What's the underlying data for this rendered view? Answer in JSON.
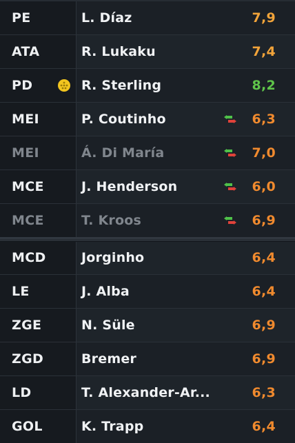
{
  "players": [
    {
      "position": "PE",
      "name": "L. Díaz",
      "rating": "7,9",
      "rating_color": "#f2a43a",
      "dim": false,
      "badge": null,
      "sub": false
    },
    {
      "position": "ATA",
      "name": "R. Lukaku",
      "rating": "7,4",
      "rating_color": "#f2a43a",
      "dim": false,
      "badge": null,
      "sub": false
    },
    {
      "position": "PD",
      "name": "R. Sterling",
      "rating": "8,2",
      "rating_color": "#5fc44a",
      "dim": false,
      "badge": "ball-icon",
      "sub": false
    },
    {
      "position": "MEI",
      "name": "P. Coutinho",
      "rating": "6,3",
      "rating_color": "#f08a2e",
      "dim": false,
      "badge": null,
      "sub": true
    },
    {
      "position": "MEI",
      "name": "Á. Di María",
      "rating": "7,0",
      "rating_color": "#f08a2e",
      "dim": true,
      "badge": null,
      "sub": true
    },
    {
      "position": "MCE",
      "name": "J. Henderson",
      "rating": "6,0",
      "rating_color": "#f08a2e",
      "dim": false,
      "badge": null,
      "sub": true
    },
    {
      "position": "MCE",
      "name": "T. Kroos",
      "rating": "6,9",
      "rating_color": "#f08a2e",
      "dim": true,
      "badge": null,
      "sub": true
    },
    {
      "position": "MCD",
      "name": "Jorginho",
      "rating": "6,4",
      "rating_color": "#f08a2e",
      "dim": false,
      "badge": null,
      "sub": false
    },
    {
      "position": "LE",
      "name": "J. Alba",
      "rating": "6,4",
      "rating_color": "#f08a2e",
      "dim": false,
      "badge": null,
      "sub": false
    },
    {
      "position": "ZGE",
      "name": "N. Süle",
      "rating": "6,9",
      "rating_color": "#f08a2e",
      "dim": false,
      "badge": null,
      "sub": false
    },
    {
      "position": "ZGD",
      "name": "Bremer",
      "rating": "6,9",
      "rating_color": "#f08a2e",
      "dim": false,
      "badge": null,
      "sub": false
    },
    {
      "position": "LD",
      "name": "T. Alexander-Ar...",
      "rating": "6,3",
      "rating_color": "#f08a2e",
      "dim": false,
      "badge": null,
      "sub": false
    },
    {
      "position": "GOL",
      "name": "K. Trapp",
      "rating": "6,4",
      "rating_color": "#f08a2e",
      "dim": false,
      "badge": null,
      "sub": false
    }
  ]
}
